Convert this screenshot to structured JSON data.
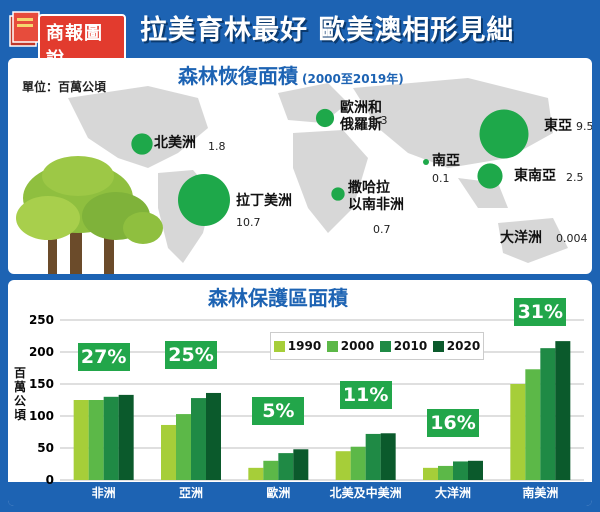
{
  "header": {
    "logo_text": "商報圖說",
    "headline": "拉美育林最好 歐美澳相形見絀"
  },
  "map_panel": {
    "title": "森林恢復面積",
    "subtitle": "(2000至2019年)",
    "unit": "單位：百萬公頃",
    "regions": [
      {
        "label_lines": [
          "北美洲"
        ],
        "value": "1.8",
        "size": 1.8
      },
      {
        "label_lines": [
          "拉丁美洲"
        ],
        "value": "10.7",
        "size": 10.7
      },
      {
        "label_lines": [
          "歐洲和",
          "俄羅斯"
        ],
        "value": "1.3",
        "size": 1.3
      },
      {
        "label_lines": [
          "撒哈拉",
          "以南非洲"
        ],
        "value": "0.7",
        "size": 0.7
      },
      {
        "label_lines": [
          "南亞"
        ],
        "value": "0.1",
        "size": 0.1
      },
      {
        "label_lines": [
          "東亞"
        ],
        "value": "9.5",
        "size": 9.5
      },
      {
        "label_lines": [
          "東南亞"
        ],
        "value": "2.5",
        "size": 2.5
      },
      {
        "label_lines": [
          "大洋洲"
        ],
        "value": "0.004",
        "size": 0.004
      }
    ]
  },
  "chart_data": {
    "type": "bar",
    "title": "森林保護區面積",
    "ylabel": "百萬公頃",
    "ylim": [
      0,
      250
    ],
    "yticks": [
      0,
      50,
      100,
      150,
      200,
      250
    ],
    "categories": [
      "非洲",
      "亞洲",
      "歐洲",
      "北美及中美洲",
      "大洋洲",
      "南美洲"
    ],
    "series": [
      {
        "name": "1990",
        "color": "#a6ce39",
        "values": [
          125,
          86,
          19,
          45,
          19,
          150
        ]
      },
      {
        "name": "2000",
        "color": "#5cb848",
        "values": [
          125,
          103,
          30,
          52,
          22,
          173
        ]
      },
      {
        "name": "2010",
        "color": "#1f8a45",
        "values": [
          130,
          128,
          42,
          72,
          29,
          206
        ]
      },
      {
        "name": "2020",
        "color": "#0b5a2c",
        "values": [
          133,
          136,
          48,
          73,
          30,
          217
        ]
      }
    ],
    "percent_labels": [
      "27%",
      "25%",
      "5%",
      "11%",
      "16%",
      "31%"
    ],
    "grid": true,
    "legend_position": "top-center"
  }
}
